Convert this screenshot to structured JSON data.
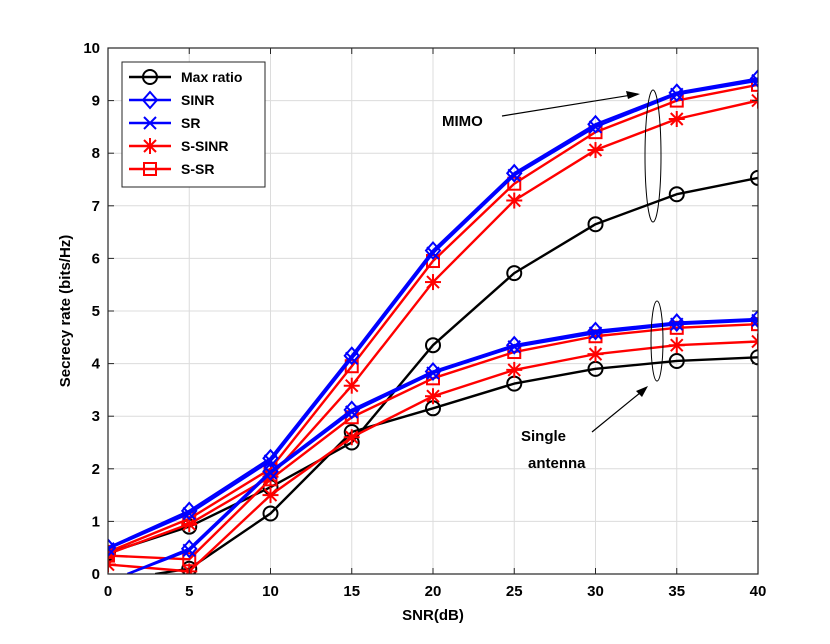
{
  "chart_data": {
    "type": "line",
    "title": "",
    "xlabel": "SNR(dB)",
    "ylabel": "Secrecy rate (bits/Hz)",
    "xlim": [
      0,
      40
    ],
    "ylim": [
      0,
      10
    ],
    "xticks": [
      0,
      5,
      10,
      15,
      20,
      25,
      30,
      35,
      40
    ],
    "yticks": [
      0,
      1,
      2,
      3,
      4,
      5,
      6,
      7,
      8,
      9,
      10
    ],
    "grid": true,
    "legend_position": "top-left",
    "legend": [
      "Max ratio",
      "SINR",
      "SR",
      "S-SINR",
      "S-SR"
    ],
    "series": [
      {
        "name": "Max ratio",
        "group": "MIMO",
        "color": "#000000",
        "marker": "circle",
        "in_legend": true,
        "x": [
          0,
          5,
          10,
          15,
          20,
          25,
          30,
          35,
          40
        ],
        "y": [
          0.4,
          0.9,
          1.65,
          2.5,
          4.35,
          5.72,
          6.65,
          7.22,
          7.53
        ]
      },
      {
        "name": "SINR",
        "group": "MIMO",
        "color": "#0000ff",
        "marker": "diamond",
        "in_legend": true,
        "x": [
          0,
          5,
          10,
          15,
          20,
          25,
          30,
          35,
          40
        ],
        "y": [
          0.5,
          1.2,
          2.2,
          4.15,
          6.15,
          7.62,
          8.55,
          9.15,
          9.42
        ]
      },
      {
        "name": "SR",
        "group": "MIMO",
        "color": "#0000ff",
        "marker": "x",
        "in_legend": true,
        "x": [
          0,
          5,
          10,
          15,
          20,
          25,
          30,
          35,
          40
        ],
        "y": [
          0.48,
          1.15,
          2.15,
          4.1,
          6.1,
          7.58,
          8.5,
          9.12,
          9.38
        ]
      },
      {
        "name": "S-SINR",
        "group": "MIMO",
        "color": "#ff0000",
        "marker": "star",
        "in_legend": true,
        "x": [
          0,
          5,
          10,
          15,
          20,
          25,
          30,
          35,
          40
        ],
        "y": [
          0.38,
          0.95,
          1.85,
          3.58,
          5.55,
          7.1,
          8.06,
          8.65,
          9.0
        ]
      },
      {
        "name": "S-SR",
        "group": "MIMO",
        "color": "#ff0000",
        "marker": "square",
        "in_legend": true,
        "x": [
          0,
          5,
          10,
          15,
          20,
          25,
          30,
          35,
          40
        ],
        "y": [
          0.42,
          1.05,
          2.0,
          3.95,
          5.95,
          7.42,
          8.4,
          9.0,
          9.3
        ]
      },
      {
        "name": "Max ratio",
        "group": "Single antenna",
        "color": "#000000",
        "marker": "circle",
        "in_legend": false,
        "x": [
          2.9,
          5,
          10,
          15,
          20,
          25,
          30,
          35,
          40
        ],
        "y": [
          0.0,
          0.1,
          1.15,
          2.7,
          3.15,
          3.62,
          3.9,
          4.05,
          4.12
        ]
      },
      {
        "name": "SINR",
        "group": "Single antenna",
        "color": "#0000ff",
        "marker": "diamond",
        "in_legend": false,
        "x": [
          1.2,
          5,
          10,
          15,
          20,
          25,
          30,
          35,
          40
        ],
        "y": [
          0.0,
          0.48,
          1.95,
          3.12,
          3.85,
          4.35,
          4.62,
          4.78,
          4.85
        ]
      },
      {
        "name": "SR",
        "group": "Single antenna",
        "color": "#0000ff",
        "marker": "x",
        "in_legend": false,
        "x": [
          1.2,
          5,
          10,
          15,
          20,
          25,
          30,
          35,
          40
        ],
        "y": [
          0.0,
          0.45,
          1.92,
          3.08,
          3.82,
          4.32,
          4.58,
          4.75,
          4.82
        ]
      },
      {
        "name": "S-SINR",
        "group": "Single antenna",
        "color": "#ff0000",
        "marker": "star",
        "in_legend": false,
        "x": [
          0,
          5,
          10,
          15,
          20,
          25,
          30,
          35,
          40
        ],
        "y": [
          0.18,
          0.05,
          1.5,
          2.6,
          3.38,
          3.88,
          4.18,
          4.35,
          4.42
        ]
      },
      {
        "name": "S-SR",
        "group": "Single antenna",
        "color": "#ff0000",
        "marker": "square",
        "in_legend": false,
        "x": [
          0,
          5,
          10,
          15,
          20,
          25,
          30,
          35,
          40
        ],
        "y": [
          0.35,
          0.28,
          1.8,
          2.98,
          3.72,
          4.22,
          4.52,
          4.68,
          4.75
        ]
      }
    ],
    "annotations": [
      {
        "label": "MIMO",
        "ellipse_center": [
          34.6,
          8.3
        ]
      },
      {
        "label": "Single antenna",
        "lines": [
          "Single",
          "antenna"
        ],
        "ellipse_center": [
          34.6,
          4.4
        ]
      }
    ]
  }
}
